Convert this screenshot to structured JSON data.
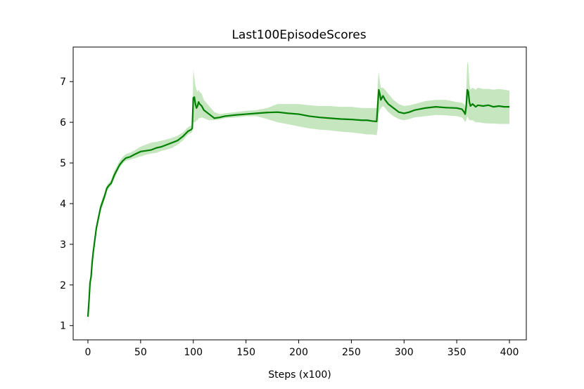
{
  "chart_data": {
    "type": "line",
    "title": "Last100EpisodeScores",
    "xlabel": "Steps (x100)",
    "ylabel": "",
    "xlim": [
      -14,
      416
    ],
    "ylim": [
      0.65,
      7.85
    ],
    "x_ticks": [
      0,
      50,
      100,
      150,
      200,
      250,
      300,
      350,
      400
    ],
    "y_ticks": [
      1,
      2,
      3,
      4,
      5,
      6,
      7
    ],
    "grid": false,
    "legend": "none",
    "colors": {
      "line": "#008000",
      "band": "#c6e6c0",
      "axes": "#000000"
    },
    "series": [
      {
        "x": [
          0,
          1,
          2,
          3,
          4,
          5,
          6,
          7,
          8,
          10,
          12,
          14,
          16,
          18,
          20,
          22,
          25,
          28,
          30,
          33,
          36,
          40,
          45,
          50,
          55,
          60,
          65,
          70,
          75,
          80,
          85,
          90,
          95,
          98,
          99,
          100,
          101,
          102,
          103,
          104,
          105,
          106,
          108,
          110,
          115,
          120,
          125,
          130,
          140,
          150,
          160,
          170,
          180,
          190,
          200,
          210,
          220,
          230,
          240,
          250,
          260,
          265,
          270,
          274,
          275,
          276,
          277,
          278,
          279,
          280,
          282,
          285,
          290,
          295,
          300,
          305,
          310,
          320,
          330,
          340,
          350,
          355,
          357,
          358,
          359,
          360,
          361,
          362,
          363,
          365,
          368,
          370,
          375,
          380,
          385,
          390,
          395,
          400
        ],
        "y": [
          1.22,
          1.6,
          2.05,
          2.2,
          2.55,
          2.8,
          3.0,
          3.2,
          3.4,
          3.65,
          3.9,
          4.05,
          4.2,
          4.38,
          4.45,
          4.5,
          4.7,
          4.85,
          4.95,
          5.05,
          5.12,
          5.15,
          5.22,
          5.28,
          5.3,
          5.32,
          5.37,
          5.4,
          5.45,
          5.5,
          5.55,
          5.65,
          5.78,
          5.82,
          5.85,
          6.6,
          6.62,
          6.45,
          6.35,
          6.4,
          6.5,
          6.45,
          6.4,
          6.3,
          6.2,
          6.1,
          6.12,
          6.15,
          6.18,
          6.2,
          6.22,
          6.24,
          6.25,
          6.22,
          6.2,
          6.15,
          6.12,
          6.1,
          6.08,
          6.07,
          6.05,
          6.05,
          6.03,
          6.02,
          6.4,
          6.8,
          6.7,
          6.55,
          6.6,
          6.65,
          6.55,
          6.45,
          6.35,
          6.25,
          6.22,
          6.25,
          6.3,
          6.35,
          6.38,
          6.36,
          6.35,
          6.32,
          6.25,
          6.2,
          6.4,
          6.8,
          6.75,
          6.5,
          6.4,
          6.45,
          6.38,
          6.42,
          6.4,
          6.42,
          6.38,
          6.4,
          6.38,
          6.38
        ],
        "lower": [
          1.05,
          1.45,
          1.95,
          2.1,
          2.45,
          2.7,
          2.9,
          3.1,
          3.3,
          3.55,
          3.8,
          3.95,
          4.1,
          4.3,
          4.38,
          4.43,
          4.6,
          4.78,
          4.88,
          4.98,
          5.05,
          5.08,
          5.12,
          5.16,
          5.2,
          5.23,
          5.25,
          5.3,
          5.33,
          5.37,
          5.45,
          5.55,
          5.7,
          5.74,
          5.76,
          6.0,
          6.0,
          6.0,
          6.05,
          6.05,
          6.1,
          6.1,
          6.12,
          6.1,
          6.05,
          6.05,
          6.07,
          6.1,
          6.12,
          6.15,
          6.15,
          6.08,
          6.0,
          5.95,
          5.9,
          5.85,
          5.82,
          5.8,
          5.77,
          5.75,
          5.72,
          5.7,
          5.7,
          5.68,
          5.85,
          6.2,
          6.3,
          6.35,
          6.38,
          6.4,
          6.35,
          6.25,
          6.15,
          6.08,
          6.05,
          6.08,
          6.12,
          6.15,
          6.18,
          6.17,
          6.15,
          6.12,
          6.05,
          6.0,
          6.05,
          6.15,
          6.1,
          6.05,
          6.05,
          6.05,
          6.0,
          6.0,
          5.98,
          5.97,
          5.97,
          5.96,
          5.96,
          5.96
        ],
        "upper": [
          1.4,
          1.75,
          2.15,
          2.3,
          2.65,
          2.9,
          3.1,
          3.3,
          3.5,
          3.75,
          4.0,
          4.15,
          4.3,
          4.45,
          4.52,
          4.58,
          4.8,
          4.95,
          5.05,
          5.15,
          5.22,
          5.25,
          5.32,
          5.4,
          5.45,
          5.5,
          5.52,
          5.55,
          5.58,
          5.62,
          5.67,
          5.75,
          5.88,
          5.92,
          5.95,
          7.3,
          7.1,
          6.9,
          6.8,
          6.75,
          6.8,
          6.75,
          6.7,
          6.55,
          6.4,
          6.25,
          6.2,
          6.22,
          6.25,
          6.28,
          6.3,
          6.35,
          6.45,
          6.45,
          6.45,
          6.42,
          6.4,
          6.4,
          6.38,
          6.38,
          6.35,
          6.35,
          6.35,
          6.35,
          6.95,
          7.25,
          7.0,
          6.85,
          6.85,
          6.85,
          6.8,
          6.7,
          6.55,
          6.45,
          6.4,
          6.42,
          6.45,
          6.52,
          6.55,
          6.55,
          6.5,
          6.48,
          6.45,
          6.4,
          6.75,
          7.5,
          7.4,
          6.95,
          6.8,
          6.85,
          6.8,
          6.85,
          6.82,
          6.82,
          6.8,
          6.82,
          6.8,
          6.78
        ]
      }
    ]
  }
}
